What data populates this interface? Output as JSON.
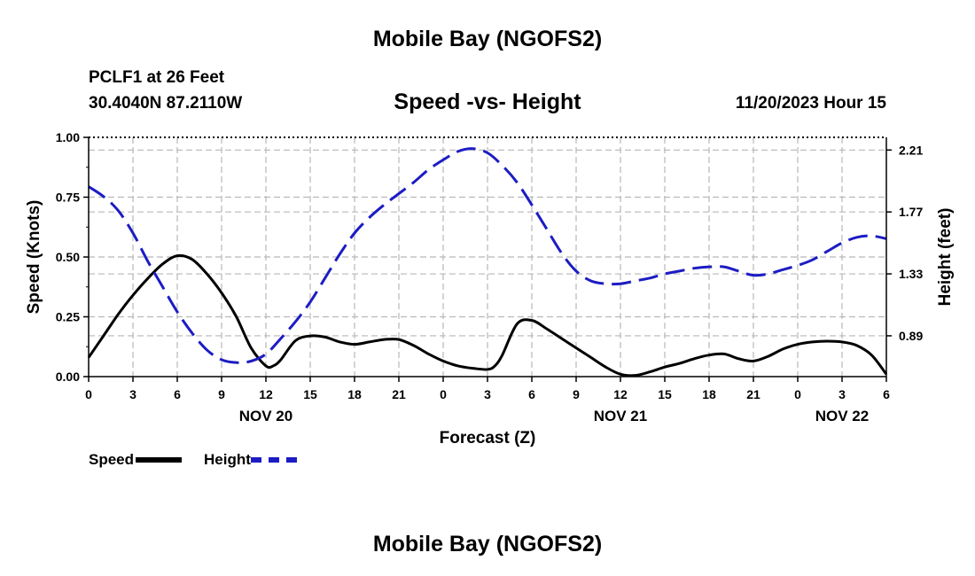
{
  "header": {
    "main_title": "Mobile Bay (NGOFS2)",
    "station_name": "PCLF1 at 26 Feet",
    "station_coords": "30.4040N  87.2110W",
    "chart_title": "Speed -vs- Height",
    "run_time": "11/20/2023 Hour 15"
  },
  "footer": {
    "bottom_title": "Mobile Bay (NGOFS2)"
  },
  "legend": {
    "speed_label": "Speed",
    "height_label": "Height"
  },
  "colors": {
    "speed": "#000000",
    "height": "#1c1cc4",
    "grid": "#b8b8b8"
  },
  "chart_data": {
    "type": "line",
    "title": "Speed -vs- Height",
    "xlabel": "Forecast (Z)",
    "ylabel": "Speed (Knots)",
    "y2label": "Height (feet)",
    "xlim": [
      0,
      54
    ],
    "ylim": [
      0,
      1.0
    ],
    "y2lim": [
      0.6,
      2.3
    ],
    "x_tick_positions": [
      0,
      3,
      6,
      9,
      12,
      15,
      18,
      21,
      24,
      27,
      30,
      33,
      36,
      39,
      42,
      45,
      48,
      51,
      54
    ],
    "x_tick_labels": [
      "0",
      "3",
      "6",
      "9",
      "12",
      "15",
      "18",
      "21",
      "0",
      "3",
      "6",
      "9",
      "12",
      "15",
      "18",
      "21",
      "0",
      "3",
      "6"
    ],
    "date_labels": [
      {
        "x": 12,
        "label": "NOV 20"
      },
      {
        "x": 36,
        "label": "NOV 21"
      },
      {
        "x": 51,
        "label": "NOV 22"
      }
    ],
    "y_ticks": [
      0,
      0.25,
      0.5,
      0.75,
      1.0
    ],
    "y_tick_labels": [
      "0.00",
      "0.25",
      "0.50",
      "0.75",
      "1.00"
    ],
    "y2_ticks": [
      0.89,
      1.33,
      1.77,
      2.21
    ],
    "y2_tick_labels": [
      "0.89",
      "1.33",
      "1.77",
      "2.21"
    ],
    "grid": true,
    "legend_position": "bottom-left",
    "series": [
      {
        "name": "Speed",
        "axis": "left",
        "style": "solid",
        "x": [
          0,
          1,
          2,
          3,
          4,
          5,
          6,
          7,
          8,
          9,
          10,
          11,
          12,
          12.5,
          13,
          14,
          15,
          16,
          17,
          18,
          19,
          20,
          21,
          22,
          23,
          24,
          25,
          26,
          27,
          27.5,
          28,
          29,
          30,
          31,
          32,
          33,
          34,
          35,
          36,
          37,
          38,
          39,
          40,
          41,
          42,
          43,
          44,
          45,
          46,
          47,
          48,
          49,
          50,
          51,
          52,
          53,
          54
        ],
        "values": [
          0.08,
          0.17,
          0.26,
          0.34,
          0.41,
          0.47,
          0.505,
          0.49,
          0.43,
          0.35,
          0.25,
          0.12,
          0.045,
          0.045,
          0.07,
          0.15,
          0.17,
          0.165,
          0.145,
          0.135,
          0.145,
          0.155,
          0.155,
          0.13,
          0.095,
          0.065,
          0.045,
          0.035,
          0.03,
          0.045,
          0.09,
          0.22,
          0.235,
          0.2,
          0.16,
          0.12,
          0.08,
          0.04,
          0.01,
          0.005,
          0.02,
          0.04,
          0.055,
          0.075,
          0.09,
          0.095,
          0.075,
          0.065,
          0.085,
          0.115,
          0.135,
          0.145,
          0.148,
          0.145,
          0.13,
          0.09,
          0.01
        ]
      },
      {
        "name": "Height",
        "axis": "right",
        "style": "dashed",
        "x": [
          0,
          1,
          2,
          3,
          4,
          5,
          6,
          7,
          8,
          9,
          10,
          11,
          12,
          13,
          14,
          15,
          16,
          17,
          18,
          19,
          20,
          21,
          22,
          23,
          24,
          25,
          26,
          27,
          28,
          29,
          30,
          31,
          32,
          33,
          34,
          35,
          36,
          37,
          38,
          39,
          40,
          41,
          42,
          43,
          44,
          45,
          46,
          47,
          48,
          49,
          50,
          51,
          52,
          53,
          54
        ],
        "values": [
          1.95,
          1.88,
          1.78,
          1.62,
          1.42,
          1.24,
          1.06,
          0.91,
          0.79,
          0.72,
          0.7,
          0.71,
          0.76,
          0.87,
          0.99,
          1.13,
          1.3,
          1.47,
          1.62,
          1.73,
          1.82,
          1.9,
          1.98,
          2.07,
          2.14,
          2.2,
          2.22,
          2.19,
          2.1,
          1.98,
          1.82,
          1.65,
          1.48,
          1.35,
          1.28,
          1.26,
          1.26,
          1.28,
          1.3,
          1.33,
          1.35,
          1.37,
          1.38,
          1.38,
          1.35,
          1.32,
          1.33,
          1.36,
          1.39,
          1.43,
          1.49,
          1.55,
          1.59,
          1.6,
          1.58
        ]
      }
    ]
  }
}
